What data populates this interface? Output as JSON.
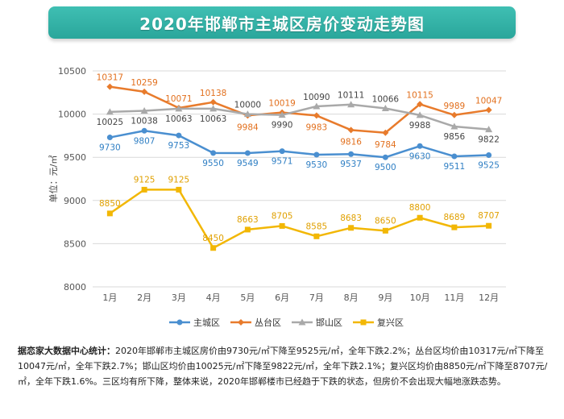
{
  "page": {
    "title": "2020年邯郸市主城区房价变动走势图"
  },
  "chart_data": {
    "type": "line",
    "categories": [
      "1月",
      "2月",
      "3月",
      "4月",
      "5月",
      "6月",
      "7月",
      "8月",
      "9月",
      "10月",
      "11月",
      "12月"
    ],
    "ylabel": "单位：元/㎡",
    "ylim": [
      8000,
      10500
    ],
    "yticks": [
      8000,
      8500,
      9000,
      9500,
      10000,
      10500
    ],
    "grid": true,
    "legend_position": "bottom",
    "series": [
      {
        "name": "主城区",
        "color": "#4a8fd0",
        "marker": "circle",
        "values": [
          9730,
          9807,
          9753,
          9550,
          9549,
          9571,
          9530,
          9537,
          9500,
          9630,
          9511,
          9525
        ]
      },
      {
        "name": "丛台区",
        "color": "#e87b2c",
        "marker": "diamond",
        "values": [
          10317,
          10259,
          10071,
          10138,
          9984,
          10019,
          9983,
          9816,
          9784,
          10115,
          9989,
          10047
        ]
      },
      {
        "name": "邯山区",
        "color": "#a9a9a9",
        "marker": "triangle",
        "values": [
          10025,
          10038,
          10063,
          10063,
          10000,
          9990,
          10090,
          10111,
          10066,
          9988,
          9856,
          9822
        ]
      },
      {
        "name": "复兴区",
        "color": "#f2b705",
        "marker": "square",
        "values": [
          8850,
          9125,
          9125,
          8450,
          8663,
          8705,
          8585,
          8683,
          8650,
          8800,
          8689,
          8707
        ]
      }
    ]
  },
  "note": {
    "lead": "据恋家大数据中心统计：",
    "body": "2020年邯郸市主城区房价由9730元/㎡下降至9525元/㎡，全年下跌2.2%；丛台区均价由10317元/㎡下降至10047元/㎡，全年下跌2.7%；邯山区均价由10025元/㎡下降至9822元/㎡，全年下跌2.1%；复兴区均价由8850元/㎡下降至8707元/㎡，全年下跌1.6%。三区均有所下降，整体来说，2020年邯郸楼市已经趋于下跌的状态，但房价不会出现大幅地涨跌态势。"
  }
}
